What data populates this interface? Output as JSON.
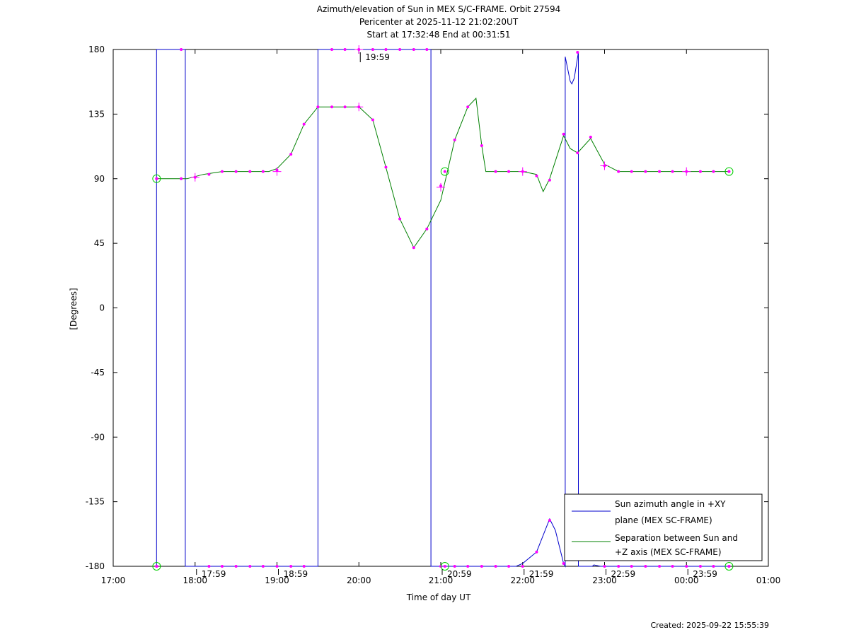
{
  "chart_data": {
    "type": "line",
    "title_lines": [
      "Azimuth/elevation of Sun in MEX S/C-FRAME.  Orbit 27594",
      "Pericenter at 2025-11-12 21:02:20UT",
      "Start at 17:32:48 End at 00:31:51"
    ],
    "xlabel": "Time of day UT",
    "ylabel": "[Degrees]",
    "footer": "Created: 2025-09-22 15:55:39",
    "xlim_hours": [
      17.0,
      25.0
    ],
    "ylim": [
      -180,
      180
    ],
    "x_ticks": [
      {
        "h": 17,
        "label": "17:00"
      },
      {
        "h": 18,
        "label": "18:00"
      },
      {
        "h": 19,
        "label": "19:00"
      },
      {
        "h": 20,
        "label": "20:00"
      },
      {
        "h": 21,
        "label": "21:00"
      },
      {
        "h": 22,
        "label": "22:00"
      },
      {
        "h": 23,
        "label": "23:00"
      },
      {
        "h": 24,
        "label": "00:00"
      },
      {
        "h": 25,
        "label": "01:00"
      }
    ],
    "y_ticks": [
      180,
      135,
      90,
      45,
      0,
      -45,
      -90,
      -135,
      -180
    ],
    "time_annotations": [
      {
        "h": 18.0,
        "deg": -180,
        "label": "17:59",
        "pos": "below"
      },
      {
        "h": 19.0,
        "deg": -180,
        "label": "18:59",
        "pos": "below"
      },
      {
        "h": 20.0,
        "deg": 180,
        "label": "19:59",
        "pos": "below"
      },
      {
        "h": 21.0,
        "deg": -180,
        "label": "20:59",
        "pos": "below"
      },
      {
        "h": 22.0,
        "deg": -180,
        "label": "21:59",
        "pos": "below"
      },
      {
        "h": 23.0,
        "deg": -180,
        "label": "22:59",
        "pos": "below"
      },
      {
        "h": 24.0,
        "deg": -180,
        "label": "23:59",
        "pos": "below"
      }
    ],
    "legend": {
      "placement": "bottom-right",
      "entries": [
        {
          "series": 0,
          "lines": [
            "Sun azimuth angle in +XY",
            "plane (MEX SC-FRAME)"
          ]
        },
        {
          "series": 1,
          "lines": [
            "Separation between Sun and",
            "+Z axis (MEX SC-FRAME)"
          ]
        }
      ]
    },
    "series": [
      {
        "name": "Sun azimuth angle in +XY plane (MEX SC-FRAME)",
        "color": "#0000cc",
        "points": [
          [
            17.53,
            -180
          ],
          [
            17.53,
            180
          ],
          [
            17.88,
            180
          ],
          [
            17.88,
            -180
          ],
          [
            19.5,
            -180
          ],
          [
            19.5,
            180
          ],
          [
            20.88,
            180
          ],
          [
            20.88,
            -180
          ],
          [
            21.92,
            -180
          ],
          [
            22.0,
            -178
          ],
          [
            22.17,
            -170
          ],
          [
            22.33,
            -147
          ],
          [
            22.4,
            -155
          ],
          [
            22.5,
            -178
          ],
          [
            22.52,
            -180
          ],
          [
            22.52,
            175
          ],
          [
            22.58,
            158
          ],
          [
            22.6,
            156
          ],
          [
            22.63,
            160
          ],
          [
            22.68,
            178
          ],
          [
            22.68,
            -180
          ],
          [
            22.85,
            -180
          ],
          [
            22.87,
            -179
          ],
          [
            22.95,
            -180
          ],
          [
            24.52,
            -180
          ]
        ]
      },
      {
        "name": "Separation between Sun and +Z axis (MEX SC-FRAME)",
        "color": "#008000",
        "points": [
          [
            17.53,
            90
          ],
          [
            17.9,
            90
          ],
          [
            18.1,
            93
          ],
          [
            18.33,
            95
          ],
          [
            18.9,
            95
          ],
          [
            19.0,
            97
          ],
          [
            19.17,
            107
          ],
          [
            19.33,
            128
          ],
          [
            19.5,
            140
          ],
          [
            20.0,
            140
          ],
          [
            20.17,
            131
          ],
          [
            20.33,
            98
          ],
          [
            20.5,
            62
          ],
          [
            20.67,
            42
          ],
          [
            20.83,
            55
          ],
          [
            21.0,
            75
          ],
          [
            21.17,
            117
          ],
          [
            21.33,
            140
          ],
          [
            21.43,
            146
          ],
          [
            21.5,
            113
          ],
          [
            21.55,
            95
          ],
          [
            22.0,
            95
          ],
          [
            22.17,
            93
          ],
          [
            22.25,
            81
          ],
          [
            22.33,
            90
          ],
          [
            22.5,
            120
          ],
          [
            22.58,
            111
          ],
          [
            22.67,
            108
          ],
          [
            22.83,
            118
          ],
          [
            23.0,
            100
          ],
          [
            23.17,
            95
          ],
          [
            24.52,
            95
          ]
        ],
        "markers": [
          [
            17.53,
            90
          ],
          [
            17.83,
            90
          ],
          [
            18.0,
            91
          ],
          [
            18.17,
            93
          ],
          [
            18.33,
            95
          ],
          [
            18.5,
            95
          ],
          [
            18.67,
            95
          ],
          [
            18.83,
            95
          ],
          [
            19.0,
            96
          ],
          [
            19.17,
            107
          ],
          [
            19.33,
            128
          ],
          [
            19.5,
            140
          ],
          [
            19.67,
            140
          ],
          [
            19.83,
            140
          ],
          [
            20.0,
            140
          ],
          [
            20.17,
            131
          ],
          [
            20.33,
            98
          ],
          [
            20.5,
            62
          ],
          [
            20.67,
            42
          ],
          [
            20.83,
            55
          ],
          [
            21.0,
            85
          ],
          [
            21.17,
            117
          ],
          [
            21.33,
            140
          ],
          [
            21.5,
            113
          ],
          [
            21.67,
            95
          ],
          [
            21.83,
            95
          ],
          [
            22.0,
            95
          ],
          [
            22.17,
            92
          ],
          [
            22.33,
            89
          ],
          [
            22.5,
            121
          ],
          [
            22.67,
            108
          ],
          [
            22.83,
            119
          ],
          [
            23.0,
            99
          ],
          [
            23.17,
            95
          ],
          [
            23.33,
            95
          ],
          [
            23.5,
            95
          ],
          [
            23.67,
            95
          ],
          [
            23.83,
            95
          ],
          [
            24.0,
            95
          ],
          [
            24.17,
            95
          ],
          [
            24.33,
            95
          ],
          [
            24.52,
            95
          ]
        ]
      }
    ],
    "azimuth_markers": [
      [
        17.53,
        -180
      ],
      [
        17.83,
        180
      ],
      [
        18.17,
        -180
      ],
      [
        18.33,
        -180
      ],
      [
        18.5,
        -180
      ],
      [
        18.67,
        -180
      ],
      [
        18.83,
        -180
      ],
      [
        19.0,
        -180
      ],
      [
        19.17,
        -180
      ],
      [
        19.33,
        -180
      ],
      [
        19.67,
        180
      ],
      [
        19.83,
        180
      ],
      [
        20.0,
        180
      ],
      [
        20.17,
        180
      ],
      [
        20.33,
        180
      ],
      [
        20.5,
        180
      ],
      [
        20.67,
        180
      ],
      [
        20.83,
        180
      ],
      [
        21.0,
        -180
      ],
      [
        21.17,
        -180
      ],
      [
        21.33,
        -180
      ],
      [
        21.5,
        -180
      ],
      [
        21.67,
        -180
      ],
      [
        21.83,
        -180
      ],
      [
        22.0,
        -180
      ],
      [
        22.17,
        -170
      ],
      [
        22.33,
        -148
      ],
      [
        22.5,
        -178
      ],
      [
        22.67,
        178
      ],
      [
        23.0,
        -180
      ],
      [
        23.17,
        -180
      ],
      [
        23.33,
        -180
      ],
      [
        23.5,
        -180
      ],
      [
        23.67,
        -180
      ],
      [
        23.83,
        -180
      ],
      [
        24.0,
        -180
      ],
      [
        24.17,
        -180
      ],
      [
        24.33,
        -180
      ],
      [
        24.52,
        -180
      ]
    ],
    "circle_markers": [
      [
        17.53,
        90
      ],
      [
        17.53,
        -180
      ],
      [
        21.05,
        95
      ],
      [
        21.05,
        -180
      ],
      [
        24.52,
        95
      ],
      [
        24.52,
        -180
      ]
    ],
    "cross_markers": [
      [
        18.0,
        91
      ],
      [
        19.0,
        95
      ],
      [
        20.0,
        140
      ],
      [
        21.0,
        84
      ],
      [
        22.0,
        95
      ],
      [
        23.0,
        99
      ],
      [
        24.0,
        95
      ],
      [
        20.0,
        180
      ]
    ]
  }
}
